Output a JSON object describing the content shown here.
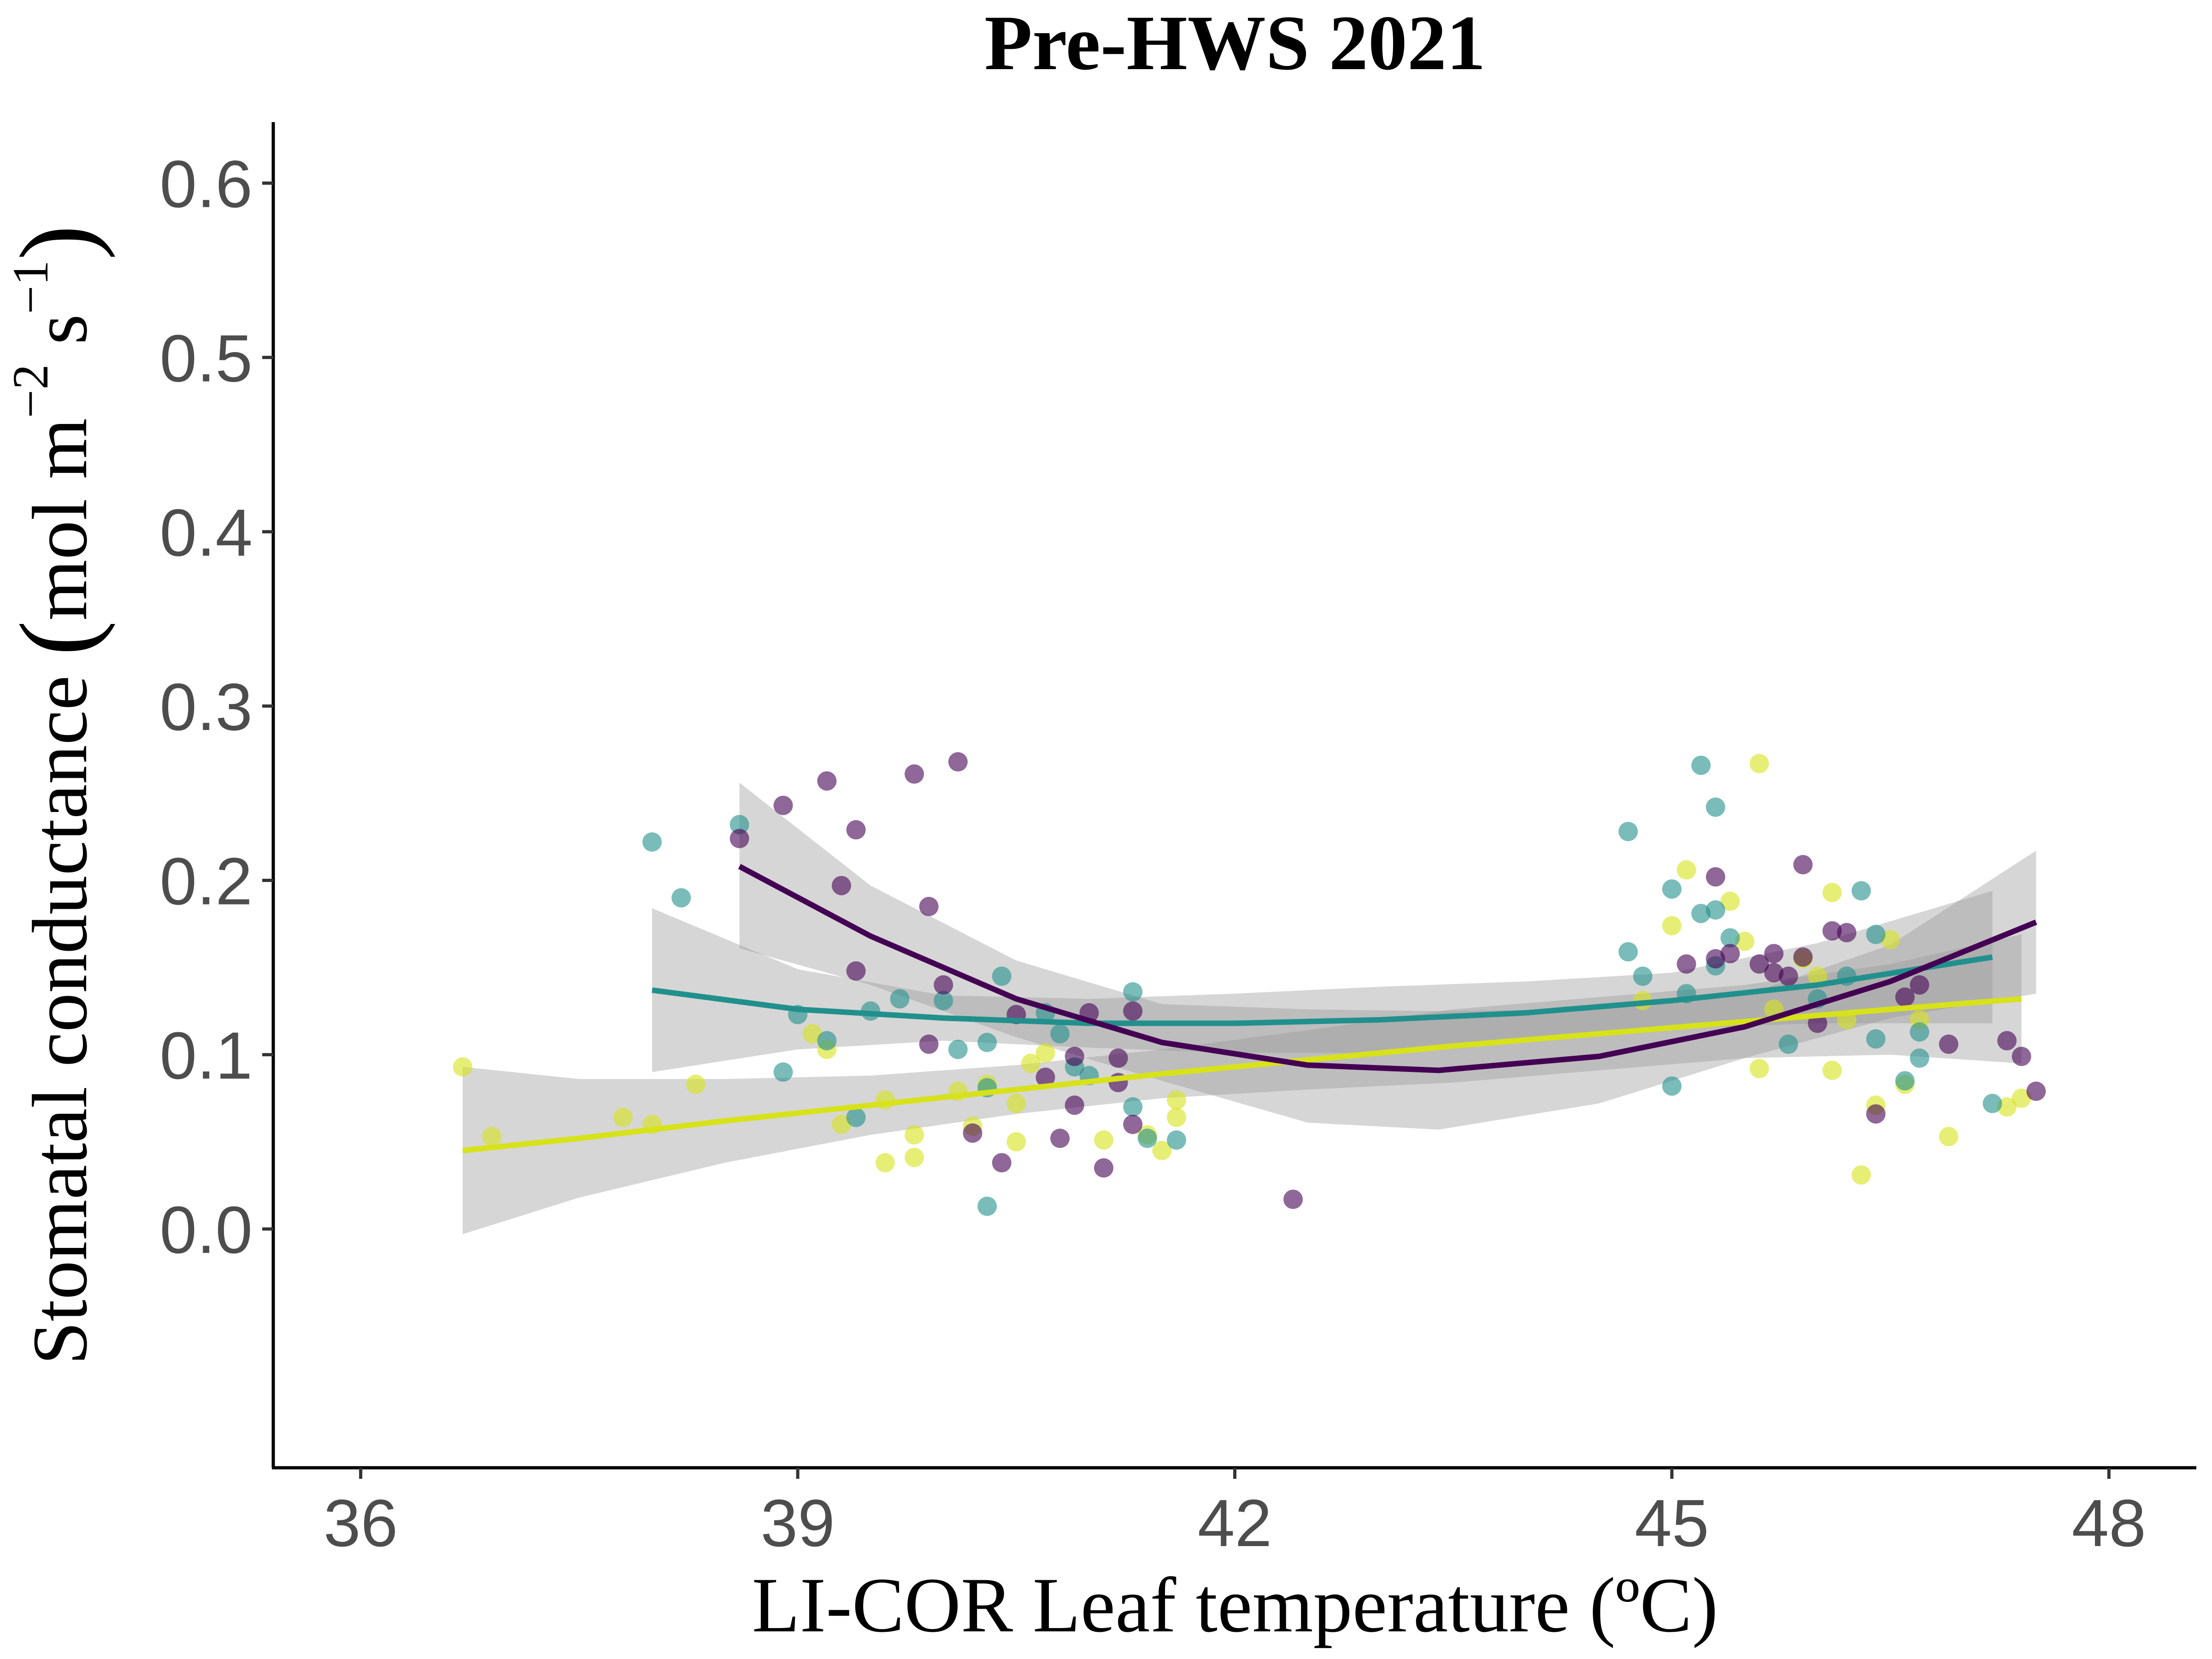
{
  "chart_data": {
    "type": "scatter",
    "title": "Pre-HWS 2021",
    "xlabel": "LI-COR Leaf temperature (ºC)",
    "ylabel": {
      "main": "Stomatal conductance ",
      "unit_prefix": "mol m",
      "exp1": "−2",
      "mid": " s",
      "exp2": "−1"
    },
    "xlim": [
      35.4,
      48.6
    ],
    "ylim": [
      -0.137,
      0.635
    ],
    "x_ticks": [
      36,
      39,
      42,
      45,
      48
    ],
    "x_tick_labels": [
      "36",
      "39",
      "42",
      "45",
      "48"
    ],
    "y_ticks": [
      0.0,
      0.1,
      0.2,
      0.3,
      0.4,
      0.5,
      0.6
    ],
    "y_tick_labels": [
      "0.0",
      "0.1",
      "0.2",
      "0.3",
      "0.4",
      "0.5",
      "0.6"
    ],
    "grid": false,
    "legend": "none",
    "series": [
      {
        "color": "#d7e219",
        "points": [
          [
            36.7,
            0.093
          ],
          [
            36.9,
            0.053
          ],
          [
            37.8,
            0.064
          ],
          [
            38.0,
            0.06
          ],
          [
            38.3,
            0.083
          ],
          [
            39.1,
            0.112
          ],
          [
            39.2,
            0.103
          ],
          [
            39.3,
            0.06
          ],
          [
            39.6,
            0.038
          ],
          [
            39.6,
            0.074
          ],
          [
            39.8,
            0.054
          ],
          [
            39.8,
            0.041
          ],
          [
            40.1,
            0.079
          ],
          [
            40.2,
            0.059
          ],
          [
            40.3,
            0.083
          ],
          [
            40.5,
            0.072
          ],
          [
            40.5,
            0.05
          ],
          [
            40.6,
            0.095
          ],
          [
            40.7,
            0.101
          ],
          [
            41.1,
            0.051
          ],
          [
            41.4,
            0.054
          ],
          [
            41.5,
            0.045
          ],
          [
            41.6,
            0.064
          ],
          [
            41.6,
            0.074
          ],
          [
            44.8,
            0.131
          ],
          [
            45.0,
            0.174
          ],
          [
            45.1,
            0.206
          ],
          [
            45.4,
            0.188
          ],
          [
            45.5,
            0.165
          ],
          [
            45.6,
            0.092
          ],
          [
            45.6,
            0.267
          ],
          [
            45.7,
            0.126
          ],
          [
            45.9,
            0.155
          ],
          [
            46.0,
            0.145
          ],
          [
            46.1,
            0.193
          ],
          [
            46.1,
            0.091
          ],
          [
            46.2,
            0.12
          ],
          [
            46.3,
            0.031
          ],
          [
            46.4,
            0.071
          ],
          [
            46.5,
            0.166
          ],
          [
            46.6,
            0.083
          ],
          [
            46.7,
            0.12
          ],
          [
            46.9,
            0.053
          ],
          [
            47.3,
            0.07
          ],
          [
            47.4,
            0.075
          ]
        ],
        "fit": {
          "x": [
            36.7,
            37.5,
            38.5,
            39.5,
            40.5,
            41.5,
            42.5,
            43.5,
            44.5,
            45.5,
            46.5,
            47.4
          ],
          "y": [
            0.045,
            0.052,
            0.062,
            0.071,
            0.08,
            0.089,
            0.097,
            0.105,
            0.112,
            0.119,
            0.126,
            0.132
          ],
          "lower": [
            -0.003,
            0.018,
            0.038,
            0.054,
            0.066,
            0.075,
            0.08,
            0.084,
            0.091,
            0.098,
            0.1,
            0.095
          ],
          "upper": [
            0.093,
            0.086,
            0.086,
            0.088,
            0.094,
            0.103,
            0.114,
            0.126,
            0.133,
            0.14,
            0.152,
            0.169
          ]
        }
      },
      {
        "color": "#21908c",
        "points": [
          [
            38.0,
            0.222
          ],
          [
            38.2,
            0.19
          ],
          [
            38.6,
            0.232
          ],
          [
            38.9,
            0.09
          ],
          [
            39.0,
            0.123
          ],
          [
            39.2,
            0.108
          ],
          [
            39.4,
            0.064
          ],
          [
            39.5,
            0.125
          ],
          [
            39.7,
            0.132
          ],
          [
            40.0,
            0.131
          ],
          [
            40.1,
            0.103
          ],
          [
            40.3,
            0.107
          ],
          [
            40.3,
            0.081
          ],
          [
            40.4,
            0.145
          ],
          [
            40.3,
            0.013
          ],
          [
            40.7,
            0.124
          ],
          [
            40.8,
            0.112
          ],
          [
            40.9,
            0.093
          ],
          [
            41.0,
            0.088
          ],
          [
            41.3,
            0.136
          ],
          [
            41.3,
            0.07
          ],
          [
            41.4,
            0.052
          ],
          [
            41.6,
            0.051
          ],
          [
            44.7,
            0.159
          ],
          [
            44.7,
            0.228
          ],
          [
            44.8,
            0.145
          ],
          [
            45.0,
            0.195
          ],
          [
            45.0,
            0.082
          ],
          [
            45.1,
            0.135
          ],
          [
            45.2,
            0.181
          ],
          [
            45.2,
            0.266
          ],
          [
            45.3,
            0.151
          ],
          [
            45.3,
            0.183
          ],
          [
            45.3,
            0.242
          ],
          [
            45.4,
            0.167
          ],
          [
            45.8,
            0.106
          ],
          [
            46.0,
            0.132
          ],
          [
            46.2,
            0.145
          ],
          [
            46.3,
            0.194
          ],
          [
            46.4,
            0.169
          ],
          [
            46.4,
            0.109
          ],
          [
            46.6,
            0.085
          ],
          [
            46.7,
            0.098
          ],
          [
            46.7,
            0.113
          ],
          [
            47.2,
            0.072
          ]
        ],
        "fit": {
          "x": [
            38.0,
            39.0,
            40.0,
            41.0,
            42.0,
            43.0,
            44.0,
            45.0,
            46.0,
            47.2
          ],
          "y": [
            0.137,
            0.126,
            0.121,
            0.118,
            0.118,
            0.12,
            0.124,
            0.131,
            0.14,
            0.156
          ],
          "lower": [
            0.09,
            0.103,
            0.108,
            0.104,
            0.101,
            0.101,
            0.108,
            0.115,
            0.118,
            0.118
          ],
          "upper": [
            0.184,
            0.149,
            0.134,
            0.132,
            0.135,
            0.139,
            0.142,
            0.147,
            0.164,
            0.194
          ]
        }
      },
      {
        "color": "#440154",
        "points": [
          [
            38.6,
            0.224
          ],
          [
            38.9,
            0.243
          ],
          [
            39.2,
            0.257
          ],
          [
            39.3,
            0.197
          ],
          [
            39.4,
            0.229
          ],
          [
            39.4,
            0.148
          ],
          [
            39.8,
            0.261
          ],
          [
            39.9,
            0.185
          ],
          [
            39.9,
            0.106
          ],
          [
            40.0,
            0.14
          ],
          [
            40.1,
            0.268
          ],
          [
            40.2,
            0.055
          ],
          [
            40.4,
            0.038
          ],
          [
            40.5,
            0.123
          ],
          [
            40.7,
            0.087
          ],
          [
            40.8,
            0.052
          ],
          [
            40.9,
            0.099
          ],
          [
            40.9,
            0.071
          ],
          [
            41.0,
            0.124
          ],
          [
            41.1,
            0.035
          ],
          [
            41.2,
            0.098
          ],
          [
            41.2,
            0.084
          ],
          [
            41.3,
            0.125
          ],
          [
            41.3,
            0.06
          ],
          [
            42.4,
            0.017
          ],
          [
            45.1,
            0.152
          ],
          [
            45.3,
            0.202
          ],
          [
            45.3,
            0.155
          ],
          [
            45.4,
            0.158
          ],
          [
            45.6,
            0.152
          ],
          [
            45.7,
            0.147
          ],
          [
            45.7,
            0.158
          ],
          [
            45.8,
            0.145
          ],
          [
            45.9,
            0.209
          ],
          [
            45.9,
            0.156
          ],
          [
            46.0,
            0.118
          ],
          [
            46.1,
            0.171
          ],
          [
            46.2,
            0.17
          ],
          [
            46.4,
            0.066
          ],
          [
            46.6,
            0.133
          ],
          [
            46.7,
            0.14
          ],
          [
            46.9,
            0.106
          ],
          [
            47.3,
            0.108
          ],
          [
            47.4,
            0.099
          ],
          [
            47.5,
            0.079
          ]
        ],
        "fit": {
          "x": [
            38.6,
            39.5,
            40.5,
            41.5,
            42.5,
            43.4,
            44.5,
            45.5,
            46.5,
            47.5
          ],
          "y": [
            0.208,
            0.168,
            0.132,
            0.107,
            0.094,
            0.091,
            0.099,
            0.116,
            0.142,
            0.176
          ],
          "lower": [
            0.161,
            0.14,
            0.11,
            0.085,
            0.061,
            0.057,
            0.072,
            0.098,
            0.121,
            0.135
          ],
          "upper": [
            0.256,
            0.197,
            0.154,
            0.129,
            0.126,
            0.125,
            0.126,
            0.134,
            0.163,
            0.217
          ]
        }
      }
    ]
  }
}
